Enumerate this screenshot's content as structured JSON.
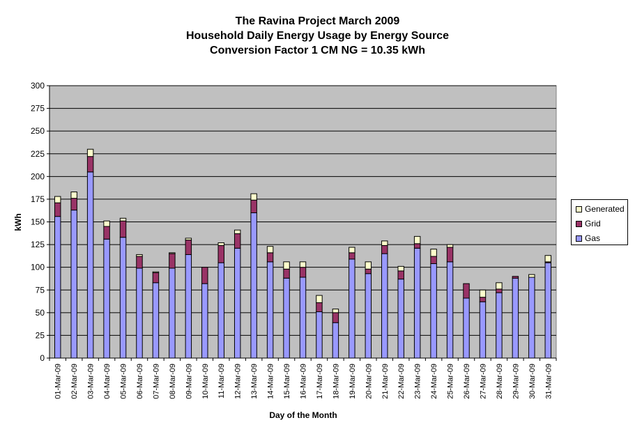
{
  "chart_data": {
    "type": "bar",
    "stacked": true,
    "title": [
      "The Ravina Project March 2009",
      "Household Daily Energy Usage by Energy Source",
      "Conversion Factor 1 CM NG = 10.35 kWh"
    ],
    "xlabel": "Day of the Month",
    "ylabel": "kWh",
    "ylim": [
      0,
      300
    ],
    "yticks": [
      0,
      25,
      50,
      75,
      100,
      125,
      150,
      175,
      200,
      225,
      250,
      275,
      300
    ],
    "grid": true,
    "legend_position": "right",
    "categories": [
      "01-Mar-09",
      "02-Mar-09",
      "03-Mar-09",
      "04-Mar-09",
      "05-Mar-09",
      "06-Mar-09",
      "07-Mar-09",
      "08-Mar-09",
      "09-Mar-09",
      "10-Mar-09",
      "11-Mar-09",
      "12-Mar-09",
      "13-Mar-09",
      "14-Mar-09",
      "15-Mar-09",
      "16-Mar-09",
      "17-Mar-09",
      "18-Mar-09",
      "19-Mar-09",
      "20-Mar-09",
      "21-Mar-09",
      "22-Mar-09",
      "23-Mar-09",
      "24-Mar-09",
      "25-Mar-09",
      "26-Mar-09",
      "27-Mar-09",
      "28-Mar-09",
      "29-Mar-09",
      "30-Mar-09",
      "31-Mar-09"
    ],
    "series": [
      {
        "name": "Gas",
        "color": "#9999ff",
        "values": [
          156,
          163,
          205,
          131,
          133,
          99,
          83,
          99,
          114,
          82,
          105,
          121,
          160,
          106,
          88,
          89,
          51,
          39,
          109,
          93,
          115,
          87,
          121,
          104,
          106,
          66,
          62,
          72,
          88,
          89,
          105
        ]
      },
      {
        "name": "Grid",
        "color": "#993366",
        "values": [
          15,
          13,
          17,
          14,
          18,
          13,
          11,
          16,
          16,
          18,
          19,
          16,
          14,
          10,
          10,
          11,
          10,
          11,
          7,
          5,
          9,
          9,
          5,
          8,
          16,
          16,
          5,
          4,
          2,
          0,
          1
        ]
      },
      {
        "name": "Generated",
        "color": "#ffffcc",
        "values": [
          7,
          7,
          8,
          6,
          3,
          2,
          1,
          1,
          2,
          0,
          3,
          4,
          7,
          7,
          8,
          6,
          8,
          4,
          6,
          8,
          5,
          5,
          8,
          8,
          3,
          0,
          8,
          7,
          0,
          3,
          7
        ]
      }
    ],
    "plot_background": "#c0c0c0"
  }
}
